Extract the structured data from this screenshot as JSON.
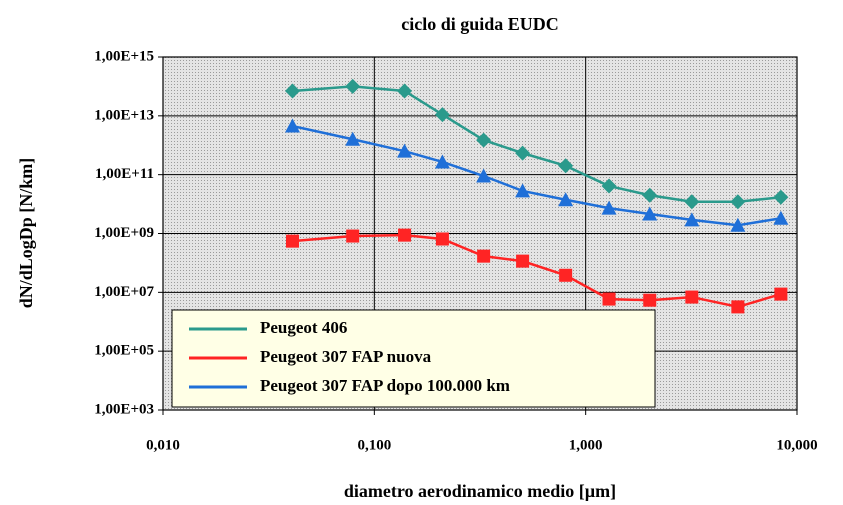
{
  "chart_data": {
    "type": "line",
    "title": "ciclo di guida EUDC",
    "xlabel": "diametro aerodinamico medio [µm]",
    "ylabel": "dN/dLogDp [N/km]",
    "xscale": "log",
    "yscale": "log",
    "xlim": [
      0.01,
      10
    ],
    "ylim": [
      1000,
      1000000000000000.0
    ],
    "xticks": [
      {
        "value": 0.01,
        "label": "0,010"
      },
      {
        "value": 0.1,
        "label": "0,100"
      },
      {
        "value": 1,
        "label": "1,000"
      },
      {
        "value": 10,
        "label": "10,000"
      }
    ],
    "yticks": [
      {
        "value": 1000,
        "label": "1,00E+03"
      },
      {
        "value": 100000,
        "label": "1,00E+05"
      },
      {
        "value": 10000000,
        "label": "1,00E+07"
      },
      {
        "value": 1000000000,
        "label": "1,00E+09"
      },
      {
        "value": 100000000000,
        "label": "1,00E+11"
      },
      {
        "value": 10000000000000,
        "label": "1,00E+13"
      },
      {
        "value": 1000000000000000,
        "label": "1,00E+15"
      }
    ],
    "grid": true,
    "legend": "lower left",
    "x": [
      0.041,
      0.079,
      0.139,
      0.21,
      0.329,
      0.503,
      0.804,
      1.29,
      2.01,
      3.18,
      5.25,
      8.39
    ],
    "series": [
      {
        "name": "Peugeot 406",
        "color": "#2a9a8c",
        "marker": "diamond",
        "values": [
          70000000000000.0,
          100000000000000.0,
          70000000000000.0,
          11000000000000.0,
          1500000000000.0,
          540000000000.0,
          200000000000.0,
          41000000000.0,
          20000000000.0,
          12000000000.0,
          12000000000.0,
          17000000000.0
        ]
      },
      {
        "name": "Peugeot 307 FAP nuova",
        "color": "#ff2424",
        "marker": "square",
        "values": [
          550000000.0,
          820000000.0,
          880000000.0,
          650000000.0,
          170000000.0,
          115000000.0,
          38000000.0,
          5900000.0,
          5400000.0,
          6900000.0,
          3200000.0,
          8700000.0
        ]
      },
      {
        "name": "Peugeot 307 FAP dopo 100.000 km",
        "color": "#1f6fd8",
        "marker": "triangle",
        "values": [
          4500000000000.0,
          1600000000000.0,
          630000000000.0,
          270000000000.0,
          90000000000.0,
          28000000000.0,
          14000000000.0,
          7300000000.0,
          4600000000.0,
          2900000000.0,
          1900000000.0,
          3300000000.0
        ]
      }
    ]
  }
}
